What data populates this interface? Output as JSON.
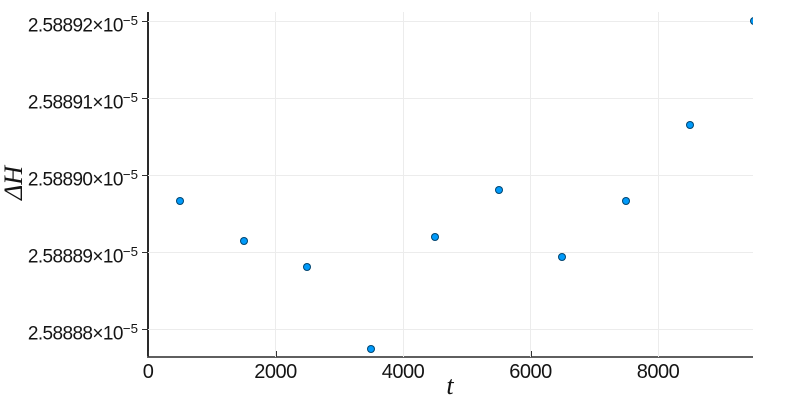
{
  "figure": {
    "background": "#ffffff",
    "title": ""
  },
  "colors": {
    "marker_fill": "#009AFA",
    "marker_stroke": "rgba(0,0,0,0.55)",
    "grid": "#ececec",
    "spine": "#2a2a2a",
    "tick_text": "#141414"
  },
  "chart_data": {
    "type": "scatter",
    "title": "",
    "xlabel": "t",
    "ylabel": "ΔH",
    "legend": "none",
    "grid": true,
    "marker": {
      "shape": "circle",
      "size": 8
    },
    "x": [
      500,
      1500,
      2500,
      3500,
      4500,
      5500,
      6500,
      7500,
      8500,
      9500
    ],
    "y": [
      2.5888967e-05,
      2.5888915e-05,
      2.5888881e-05,
      2.5888774e-05,
      2.588892e-05,
      2.5888981e-05,
      2.5888894e-05,
      2.5888967e-05,
      2.5889065e-05,
      2.58892e-05
    ],
    "xlim": [
      0,
      9490
    ],
    "ylim": [
      2.5888764e-05,
      2.5889212e-05
    ],
    "x_ticks": [
      {
        "value": 0,
        "label": "0"
      },
      {
        "value": 2000,
        "label": "2000"
      },
      {
        "value": 4000,
        "label": "4000"
      },
      {
        "value": 6000,
        "label": "6000"
      },
      {
        "value": 8000,
        "label": "8000"
      }
    ],
    "y_ticks": [
      {
        "value": 2.58888e-05,
        "mantissa": "2.58888×10",
        "exponent": "−5"
      },
      {
        "value": 2.58889e-05,
        "mantissa": "2.58889×10",
        "exponent": "−5"
      },
      {
        "value": 2.5889e-05,
        "mantissa": "2.58890×10",
        "exponent": "−5"
      },
      {
        "value": 2.58891e-05,
        "mantissa": "2.58891×10",
        "exponent": "−5"
      },
      {
        "value": 2.58892e-05,
        "mantissa": "2.58892×10",
        "exponent": "−5"
      }
    ]
  }
}
